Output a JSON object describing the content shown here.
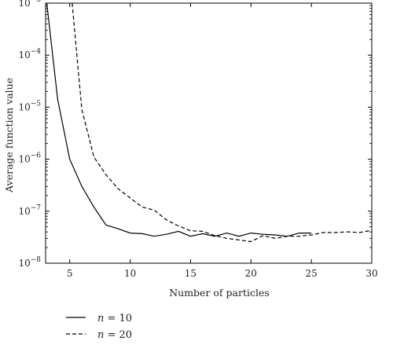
{
  "chart_data": {
    "type": "line",
    "title": "",
    "xlabel": "Number of particles",
    "ylabel": "Average function value",
    "xlim": [
      3,
      30
    ],
    "ylim": [
      1e-08,
      0.001
    ],
    "yscale": "log",
    "grid": false,
    "legend_placement": "bottom-left, below plot",
    "x_ticks": [
      5,
      10,
      15,
      20,
      25,
      30
    ],
    "y_ticks": [
      {
        "value": 1e-08,
        "base": "10",
        "exp": "−8"
      },
      {
        "value": 1e-07,
        "base": "10",
        "exp": "−7"
      },
      {
        "value": 1e-06,
        "base": "10",
        "exp": "−6"
      },
      {
        "value": 1e-05,
        "base": "10",
        "exp": "−5"
      },
      {
        "value": 0.0001,
        "base": "10",
        "exp": "−4"
      },
      {
        "value": 0.001,
        "base": "10",
        "exp": "−3"
      }
    ],
    "series": [
      {
        "name_var": "n",
        "name_rest": " = 10",
        "style": "solid",
        "color": "#000000",
        "x": [
          3.1,
          4,
          5,
          6,
          7,
          8,
          9,
          10,
          11,
          12,
          13,
          14,
          15,
          16,
          17,
          18,
          19,
          20,
          21,
          22,
          23,
          24,
          25
        ],
        "y": [
          0.001,
          1.4e-05,
          1e-06,
          3e-07,
          1.2e-07,
          5.4e-08,
          4.6e-08,
          3.8e-08,
          3.7e-08,
          3.3e-08,
          3.6e-08,
          4.1e-08,
          3.3e-08,
          3.7e-08,
          3.3e-08,
          3.8e-08,
          3.3e-08,
          3.8e-08,
          3.6e-08,
          3.5e-08,
          3.3e-08,
          3.8e-08,
          3.8e-08
        ]
      },
      {
        "name_var": "n",
        "name_rest": " = 20",
        "style": "dashed",
        "color": "#000000",
        "x": [
          5.2,
          6,
          7,
          8,
          9,
          10,
          11,
          12,
          13,
          14,
          15,
          16,
          17,
          18,
          19,
          20,
          21,
          22,
          23,
          24,
          25,
          26,
          27,
          28,
          29,
          30
        ],
        "y": [
          0.001,
          9e-06,
          1.1e-06,
          5e-07,
          2.7e-07,
          1.8e-07,
          1.2e-07,
          1.05e-07,
          6.8e-08,
          5.2e-08,
          4.2e-08,
          4.1e-08,
          3.4e-08,
          3e-08,
          2.8e-08,
          2.6e-08,
          3.4e-08,
          3e-08,
          3.3e-08,
          3.3e-08,
          3.5e-08,
          3.9e-08,
          3.9e-08,
          4e-08,
          3.9e-08,
          4.3e-08
        ]
      }
    ]
  }
}
